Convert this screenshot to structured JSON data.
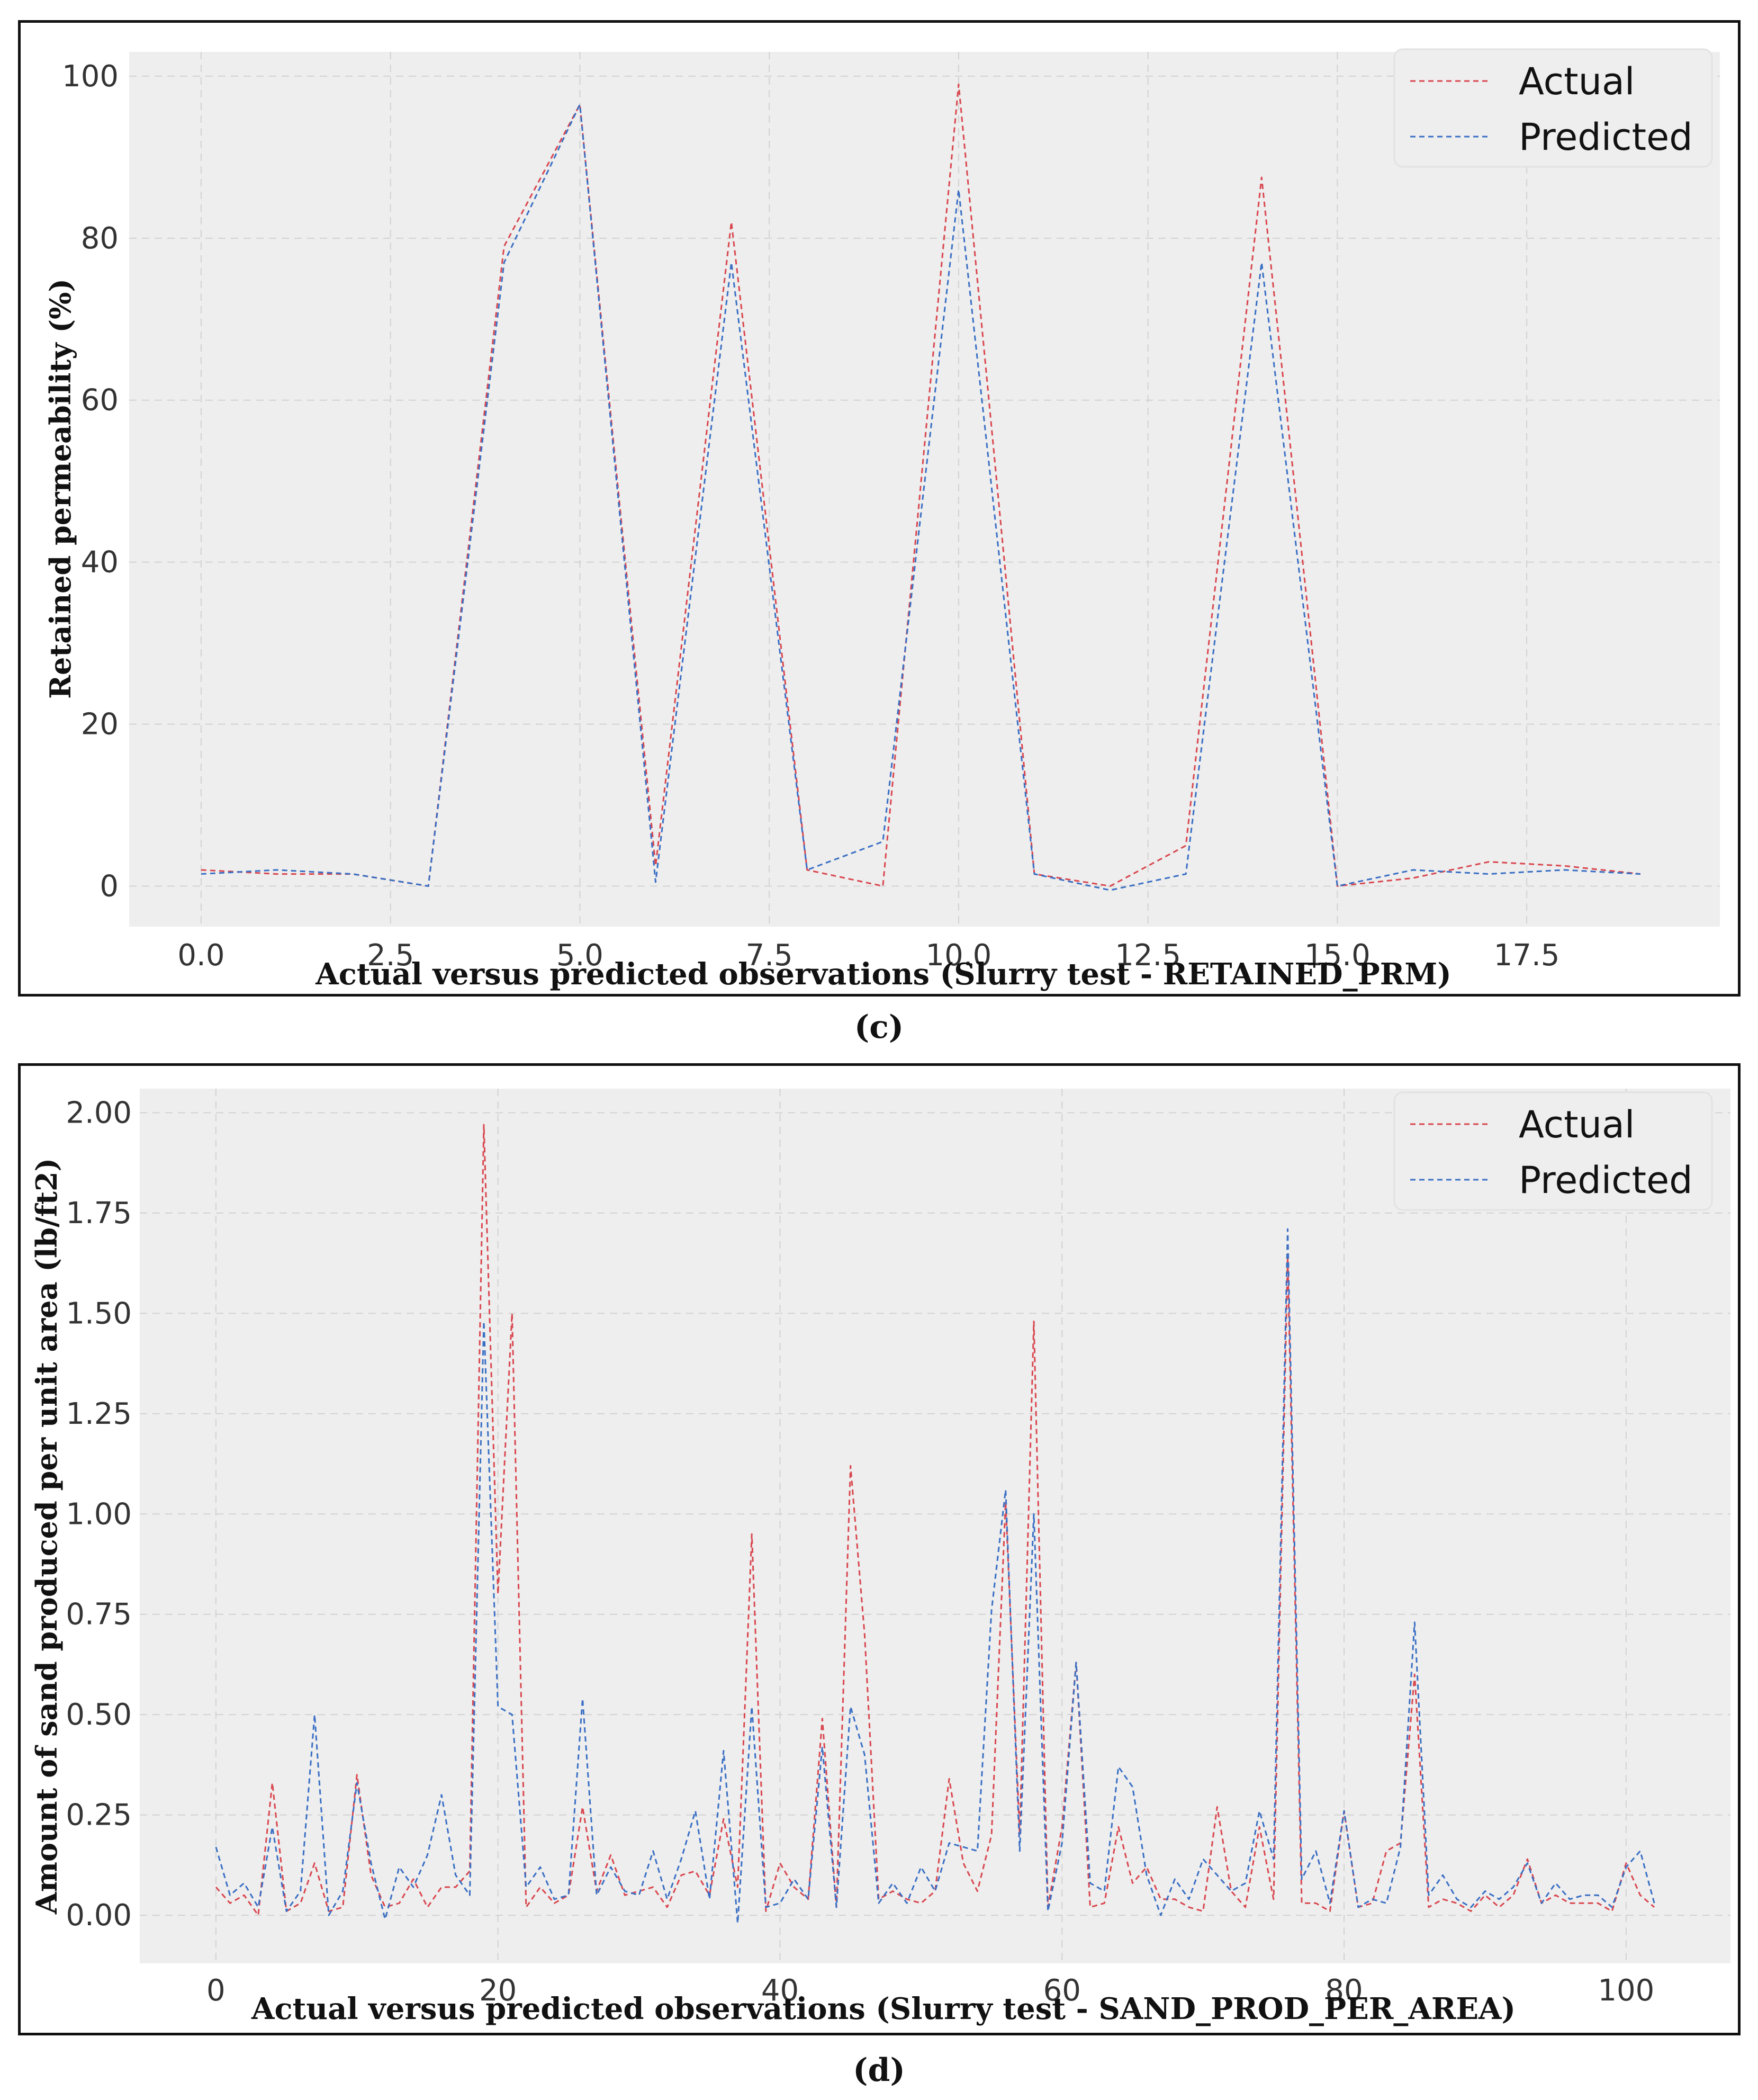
{
  "colors": {
    "actual": "#d9474f",
    "predicted": "#3a6fc4",
    "plot_bg": "#eeeeee",
    "grid": "#d2d2d2"
  },
  "chart_data": [
    {
      "id": "c",
      "type": "line",
      "caption": "(c)",
      "xlabel": "Actual versus predicted observations (Slurry test - RETAINED_PRM)",
      "ylabel": "Retained permeability (%)",
      "xlim": [
        -0.95,
        20.05
      ],
      "ylim": [
        -5,
        103
      ],
      "xticks": [
        0,
        2.5,
        5,
        7.5,
        10,
        12.5,
        15,
        17.5
      ],
      "xtick_labels": [
        "0.0",
        "2.5",
        "5.0",
        "7.5",
        "10.0",
        "12.5",
        "15.0",
        "17.5"
      ],
      "yticks": [
        0,
        20,
        40,
        60,
        80,
        100
      ],
      "ytick_labels": [
        "0",
        "20",
        "40",
        "60",
        "80",
        "100"
      ],
      "grid": true,
      "legend_position": "top-right",
      "x": [
        0,
        1,
        2,
        3,
        4,
        5,
        6,
        7,
        8,
        9,
        10,
        11,
        12,
        13,
        14,
        15,
        16,
        17,
        18,
        19
      ],
      "series": [
        {
          "name": "Actual",
          "values": [
            2,
            1.5,
            1.5,
            0,
            79,
            96.5,
            2.5,
            82,
            2,
            0,
            99,
            1.5,
            0,
            5,
            87.5,
            0,
            1,
            3,
            2.5,
            1.5
          ]
        },
        {
          "name": "Predicted",
          "values": [
            1.5,
            2,
            1.5,
            0,
            77,
            96.5,
            0.5,
            77,
            2,
            5.5,
            86,
            1.5,
            -0.5,
            1.5,
            77,
            0,
            2,
            1.5,
            2,
            1.5
          ]
        }
      ]
    },
    {
      "id": "d",
      "type": "line",
      "caption": "(d)",
      "xlabel": "Actual versus predicted observations (Slurry test - SAND_PROD_PER_AREA)",
      "ylabel": "Amount of sand produced per unit area (lb/ft2)",
      "xlim": [
        -5.4,
        107.4
      ],
      "ylim": [
        -0.12,
        2.06
      ],
      "xticks": [
        0,
        20,
        40,
        60,
        80,
        100
      ],
      "xtick_labels": [
        "0",
        "20",
        "40",
        "60",
        "80",
        "100"
      ],
      "yticks": [
        0,
        0.25,
        0.5,
        0.75,
        1,
        1.25,
        1.5,
        1.75,
        2
      ],
      "ytick_labels": [
        "0.00",
        "0.25",
        "0.50",
        "0.75",
        "1.00",
        "1.25",
        "1.50",
        "1.75",
        "2.00"
      ],
      "grid": true,
      "legend_position": "top-right",
      "x_start": 0,
      "series": [
        {
          "name": "Actual",
          "values": [
            0.07,
            0.03,
            0.05,
            0.0,
            0.33,
            0.01,
            0.03,
            0.13,
            0.01,
            0.02,
            0.35,
            0.1,
            0.02,
            0.03,
            0.09,
            0.02,
            0.07,
            0.07,
            0.11,
            1.97,
            0.8,
            1.5,
            0.02,
            0.07,
            0.03,
            0.05,
            0.27,
            0.06,
            0.15,
            0.05,
            0.06,
            0.07,
            0.02,
            0.1,
            0.11,
            0.05,
            0.24,
            0.07,
            0.95,
            0.01,
            0.13,
            0.07,
            0.04,
            0.49,
            0.02,
            1.12,
            0.7,
            0.04,
            0.06,
            0.04,
            0.03,
            0.06,
            0.34,
            0.13,
            0.06,
            0.2,
            1.03,
            0.2,
            1.48,
            0.02,
            0.22,
            0.63,
            0.02,
            0.03,
            0.22,
            0.08,
            0.12,
            0.04,
            0.04,
            0.02,
            0.01,
            0.27,
            0.06,
            0.02,
            0.22,
            0.04,
            1.64,
            0.03,
            0.03,
            0.01,
            0.26,
            0.02,
            0.03,
            0.16,
            0.18,
            0.6,
            0.02,
            0.04,
            0.03,
            0.01,
            0.05,
            0.02,
            0.05,
            0.14,
            0.03,
            0.05,
            0.03,
            0.03,
            0.03,
            0.01,
            0.13,
            0.05,
            0.02
          ]
        },
        {
          "name": "Predicted",
          "values": [
            0.17,
            0.05,
            0.08,
            0.02,
            0.22,
            0.01,
            0.06,
            0.5,
            0.0,
            0.06,
            0.33,
            0.13,
            -0.01,
            0.12,
            0.07,
            0.15,
            0.3,
            0.1,
            0.05,
            1.48,
            0.52,
            0.5,
            0.07,
            0.12,
            0.04,
            0.05,
            0.54,
            0.05,
            0.12,
            0.06,
            0.05,
            0.16,
            0.04,
            0.14,
            0.26,
            0.04,
            0.41,
            -0.02,
            0.52,
            0.02,
            0.03,
            0.09,
            0.04,
            0.42,
            0.02,
            0.52,
            0.4,
            0.03,
            0.08,
            0.03,
            0.12,
            0.06,
            0.18,
            0.17,
            0.16,
            0.76,
            1.06,
            0.16,
            1.0,
            0.01,
            0.18,
            0.63,
            0.08,
            0.06,
            0.37,
            0.32,
            0.1,
            0.0,
            0.09,
            0.04,
            0.14,
            0.1,
            0.06,
            0.08,
            0.26,
            0.14,
            1.71,
            0.09,
            0.16,
            0.03,
            0.26,
            0.02,
            0.04,
            0.03,
            0.17,
            0.73,
            0.05,
            0.1,
            0.04,
            0.02,
            0.06,
            0.04,
            0.07,
            0.13,
            0.03,
            0.08,
            0.04,
            0.05,
            0.05,
            0.02,
            0.12,
            0.16,
            0.03
          ]
        }
      ]
    }
  ]
}
